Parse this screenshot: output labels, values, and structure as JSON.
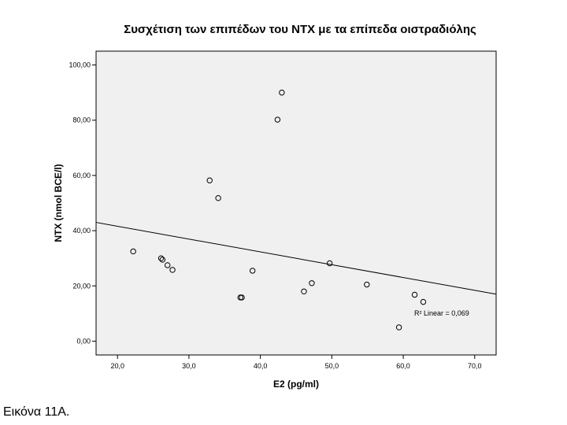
{
  "chart_data": {
    "type": "scatter",
    "title": "Συσχέτιση των επιπέδων του NTX με τα επίπεδα οιστραδιόλης",
    "xlabel": "E2 (pg/ml)",
    "ylabel": "NTX (nmol BCE/l)",
    "xlim": [
      17.0,
      73.0
    ],
    "ylim": [
      -5.0,
      105.0
    ],
    "x_ticks": [
      20,
      30,
      40,
      50,
      60,
      70
    ],
    "x_tick_labels": [
      "20,0",
      "30,0",
      "40,0",
      "50,0",
      "60,0",
      "70,0"
    ],
    "y_ticks": [
      0,
      20,
      40,
      60,
      80,
      100
    ],
    "y_tick_labels": [
      "0,00",
      "20,00",
      "40,00",
      "60,00",
      "80,00",
      "100,00"
    ],
    "points": [
      {
        "x": 22.2,
        "y": 32.5
      },
      {
        "x": 26.1,
        "y": 30.0
      },
      {
        "x": 26.3,
        "y": 29.5
      },
      {
        "x": 27.0,
        "y": 27.5
      },
      {
        "x": 27.7,
        "y": 25.8
      },
      {
        "x": 32.9,
        "y": 58.2
      },
      {
        "x": 34.1,
        "y": 51.8
      },
      {
        "x": 37.2,
        "y": 15.8
      },
      {
        "x": 37.4,
        "y": 15.8
      },
      {
        "x": 38.9,
        "y": 25.5
      },
      {
        "x": 42.4,
        "y": 80.2
      },
      {
        "x": 43.0,
        "y": 90.0
      },
      {
        "x": 46.1,
        "y": 18.0
      },
      {
        "x": 47.2,
        "y": 21.0
      },
      {
        "x": 49.7,
        "y": 28.2
      },
      {
        "x": 54.9,
        "y": 20.5
      },
      {
        "x": 59.4,
        "y": 5.0
      },
      {
        "x": 61.6,
        "y": 16.8
      },
      {
        "x": 62.8,
        "y": 14.2
      }
    ],
    "fit_line": {
      "x": [
        17.0,
        73.0
      ],
      "y": [
        43.0,
        17.0
      ]
    },
    "annotation": "R² Linear = 0,069",
    "grid": false,
    "plot_background": "#f0f0f0"
  },
  "caption": "Εικόνα 11Α."
}
